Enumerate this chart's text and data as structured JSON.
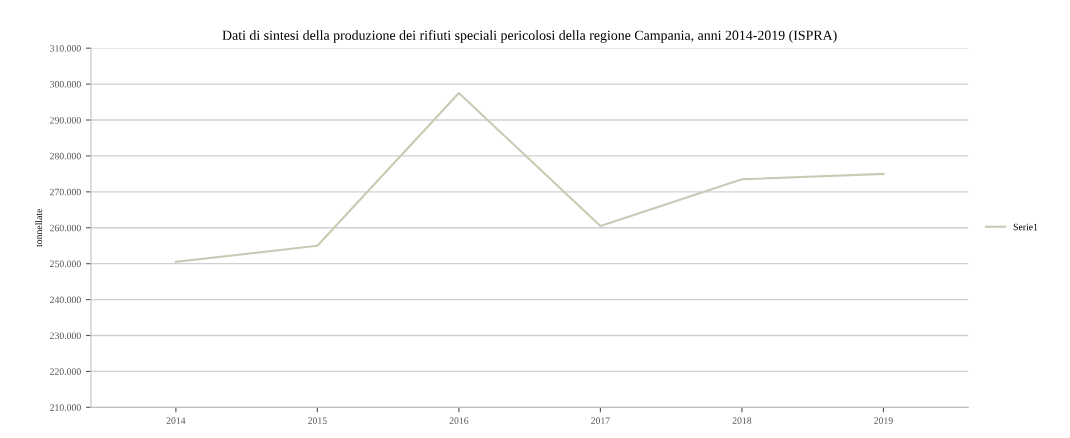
{
  "chart_data": {
    "type": "line",
    "title": "Dati di sintesi della produzione dei rifiuti speciali pericolosi della regione Campania, anni 2014-2019 (ISPRA)",
    "ylabel": "tonnellate",
    "categories": [
      "2014",
      "2015",
      "2016",
      "2017",
      "2018",
      "2019"
    ],
    "series": [
      {
        "name": "Serie1",
        "color": "#c9c9b4",
        "values": [
          250500,
          255000,
          297500,
          260500,
          273500,
          275000
        ]
      }
    ],
    "ylim": [
      210000,
      310000
    ],
    "yticks": [
      {
        "value": 210000,
        "label": "210.000"
      },
      {
        "value": 220000,
        "label": "220.000"
      },
      {
        "value": 230000,
        "label": "230.000"
      },
      {
        "value": 240000,
        "label": "240.000"
      },
      {
        "value": 250000,
        "label": "250.000"
      },
      {
        "value": 260000,
        "label": "260.000"
      },
      {
        "value": 270000,
        "label": "270.000"
      },
      {
        "value": 280000,
        "label": "280.000"
      },
      {
        "value": 290000,
        "label": "290.000"
      },
      {
        "value": 300000,
        "label": "300.000"
      },
      {
        "value": 310000,
        "label": "310.000"
      }
    ],
    "grid": "y",
    "legend": "right",
    "marker": "none",
    "line_style": "solid"
  }
}
